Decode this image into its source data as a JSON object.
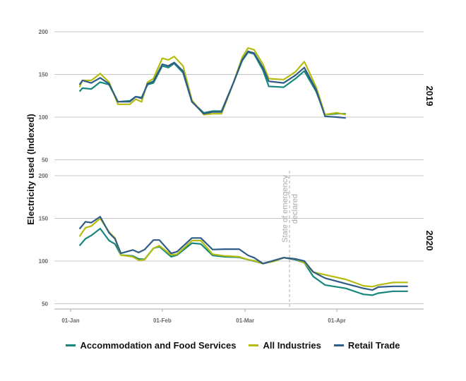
{
  "chart_data": {
    "type": "line",
    "ylabel": "Electricity used (Indexed)",
    "x_ticks": [
      "01-Jan",
      "01-Feb",
      "01-Mar",
      "01-Apr"
    ],
    "y_ticks": [
      50,
      100,
      150,
      200
    ],
    "ylim": [
      45,
      205
    ],
    "grid": true,
    "legend_position": "bottom",
    "colors": {
      "Accommodation and Food Services": "#16877b",
      "All Industries": "#b4bc0e",
      "Retail Trade": "#2f5c87"
    },
    "annotation": {
      "date": "03-16",
      "panel": "2020",
      "line1": "State of emergency",
      "line2": "declared"
    },
    "panels": [
      {
        "label": "2019",
        "x": [
          "01-04",
          "01-05",
          "01-08",
          "01-11",
          "01-14",
          "01-17",
          "01-21",
          "01-23",
          "01-25",
          "01-27",
          "01-29",
          "02-01",
          "02-03",
          "02-05",
          "02-08",
          "02-11",
          "02-15",
          "02-18",
          "02-21",
          "02-25",
          "02-28",
          "03-02",
          "03-04",
          "03-07",
          "03-09",
          "03-14",
          "03-18",
          "03-21",
          "03-25",
          "03-28",
          "04-01",
          "04-04"
        ],
        "series": [
          {
            "name": "Accommodation and Food Services",
            "values": [
              130,
              134,
              133,
              141,
              138,
              118,
              119,
              124,
              123,
              138,
              140,
              160,
              158,
              163,
              152,
              118,
              105,
              107,
              107,
              140,
              166,
              176,
              174,
              155,
              136,
              135,
              145,
              154,
              130,
              103,
              104,
              104
            ]
          },
          {
            "name": "All Industries",
            "values": [
              135,
              143,
              143,
              151,
              141,
              115,
              115,
              121,
              118,
              141,
              145,
              169,
              167,
              171,
              160,
              120,
              103,
              104,
              104,
              140,
              170,
              181,
              179,
              162,
              145,
              144,
              153,
              165,
              135,
              103,
              105,
              103
            ]
          },
          {
            "name": "Retail Trade",
            "values": [
              138,
              143,
              140,
              146,
              139,
              118,
              118,
              124,
              122,
              139,
              142,
              162,
              160,
              164,
              154,
              118,
              104,
              106,
              106,
              140,
              167,
              177,
              175,
              158,
              142,
              140,
              149,
              158,
              132,
              101,
              100,
              99
            ]
          }
        ]
      },
      {
        "label": "2020",
        "x": [
          "01-04",
          "01-06",
          "01-08",
          "01-11",
          "01-14",
          "01-16",
          "01-18",
          "01-22",
          "01-24",
          "01-26",
          "01-29",
          "01-31",
          "02-04",
          "02-06",
          "02-11",
          "02-14",
          "02-18",
          "02-22",
          "02-27",
          "03-02",
          "03-04",
          "03-07",
          "03-11",
          "03-14",
          "03-18",
          "03-21",
          "03-24",
          "03-28",
          "04-04",
          "04-10",
          "04-13",
          "04-15",
          "04-20",
          "04-25"
        ],
        "series": [
          {
            "name": "Accommodation and Food Services",
            "values": [
              118,
              126,
              130,
              138,
              124,
              120,
              107,
              106,
              102.5,
              102,
              115,
              117,
              105,
              107,
              121,
              120,
              106.6,
              105,
              104.4,
              101.6,
              100,
              97,
              100,
              104,
              101.6,
              98,
              82,
              72,
              68,
              61,
              60,
              62.4,
              64.6,
              64.6
            ]
          },
          {
            "name": "All Industries",
            "values": [
              128.7,
              139,
              141,
              150,
              134,
              127,
              107,
              105,
              101,
              101.6,
              115,
              118,
              107,
              108,
              124,
              124,
              108,
              106,
              105,
              101.6,
              100.5,
              97,
              100,
              104,
              102.5,
              98,
              87,
              84,
              78.5,
              71,
              70,
              72,
              75,
              75
            ]
          },
          {
            "name": "Retail Trade",
            "values": [
              137.6,
              146,
              145,
              152,
              133,
              126,
              109,
              113,
              110,
              113.5,
              124.6,
              124.6,
              109,
              111,
              127,
              127,
              113.5,
              114,
              114,
              106.6,
              104,
              97,
              101,
              104,
              102.5,
              100,
              87.3,
              80,
              73.5,
              68,
              66,
              69.5,
              70.4,
              70.4
            ]
          }
        ]
      }
    ]
  }
}
